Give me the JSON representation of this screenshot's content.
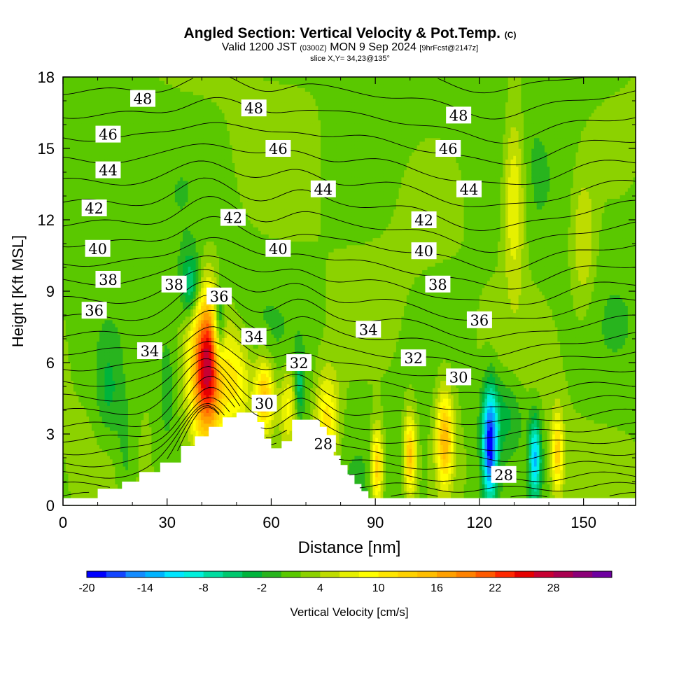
{
  "title": {
    "main": "Angled Section: Vertical Velocity & Pot.Temp.",
    "copyright": "(C)",
    "valid_prefix": "Valid 1200 JST",
    "utc": "(0300Z)",
    "valid_date": "MON 9 Sep 2024",
    "forecast": "[9hrFcst@2147z]",
    "slice": "slice X,Y= 34,23@135°"
  },
  "chart_data": {
    "type": "heatmap",
    "xlabel": "Distance [nm]",
    "ylabel": "Height [Kft MSL]",
    "xlim": [
      0,
      165
    ],
    "ylim": [
      0,
      18
    ],
    "xticks": [
      0,
      30,
      60,
      90,
      120,
      150
    ],
    "yticks": [
      0,
      3,
      6,
      9,
      12,
      15,
      18
    ],
    "colorbar": {
      "label": "Vertical Velocity [cm/s]",
      "min": -20,
      "max": 32,
      "step": 2,
      "tick_labels": [
        -20,
        -14,
        -8,
        -2,
        4,
        10,
        16,
        22,
        28
      ],
      "colors": [
        "#0000ff",
        "#1446ff",
        "#148cff",
        "#00b4ff",
        "#00e6ff",
        "#00f0dc",
        "#00dca0",
        "#00c86e",
        "#00b43c",
        "#28b41e",
        "#5ac800",
        "#8cd200",
        "#bedc00",
        "#e6f000",
        "#ffff00",
        "#ffe600",
        "#ffd200",
        "#ffbe00",
        "#ffa000",
        "#ff8200",
        "#ff5a00",
        "#ff2800",
        "#e60000",
        "#c80032",
        "#aa0050",
        "#8c0078",
        "#6e00a0"
      ]
    },
    "terrain": [
      [
        0,
        0.3
      ],
      [
        8,
        0.3
      ],
      [
        10,
        0.7
      ],
      [
        15,
        0.7
      ],
      [
        17,
        1.0
      ],
      [
        20,
        1.0
      ],
      [
        22,
        1.4
      ],
      [
        26,
        1.4
      ],
      [
        28,
        1.8
      ],
      [
        32,
        1.8
      ],
      [
        34,
        2.5
      ],
      [
        36,
        2.5
      ],
      [
        38,
        2.9
      ],
      [
        40,
        2.9
      ],
      [
        42,
        3.3
      ],
      [
        44,
        3.3
      ],
      [
        46,
        3.7
      ],
      [
        48,
        3.7
      ],
      [
        50,
        3.9
      ],
      [
        55,
        3.9
      ],
      [
        56,
        3.5
      ],
      [
        58,
        2.8
      ],
      [
        60,
        2.4
      ],
      [
        62,
        2.4
      ],
      [
        63,
        2.7
      ],
      [
        65,
        2.7
      ],
      [
        66,
        3.6
      ],
      [
        72,
        3.6
      ],
      [
        74,
        3.3
      ],
      [
        76,
        2.5
      ],
      [
        78,
        2.1
      ],
      [
        80,
        1.7
      ],
      [
        82,
        1.3
      ],
      [
        84,
        0.9
      ],
      [
        86,
        0.6
      ],
      [
        88,
        0.3
      ],
      [
        165,
        0.3
      ]
    ],
    "theta_isentropes": [
      {
        "value": 28,
        "labels": [
          [
            75,
            2.6
          ],
          [
            127,
            1.3
          ]
        ]
      },
      {
        "value": 30,
        "labels": [
          [
            58,
            4.3
          ],
          [
            114,
            5.4
          ]
        ]
      },
      {
        "value": 32,
        "labels": [
          [
            68,
            6.0
          ],
          [
            101,
            6.2
          ]
        ]
      },
      {
        "value": 34,
        "labels": [
          [
            25,
            6.5
          ],
          [
            55,
            7.1
          ],
          [
            88,
            7.4
          ]
        ]
      },
      {
        "value": 36,
        "labels": [
          [
            9,
            8.2
          ],
          [
            45,
            8.8
          ],
          [
            120,
            7.8
          ]
        ]
      },
      {
        "value": 38,
        "labels": [
          [
            13,
            9.5
          ],
          [
            32,
            9.3
          ],
          [
            108,
            9.3
          ]
        ]
      },
      {
        "value": 40,
        "labels": [
          [
            10,
            10.8
          ],
          [
            62,
            10.8
          ],
          [
            104,
            10.7
          ]
        ]
      },
      {
        "value": 42,
        "labels": [
          [
            9,
            12.5
          ],
          [
            49,
            12.1
          ],
          [
            104,
            12.0
          ]
        ]
      },
      {
        "value": 44,
        "labels": [
          [
            13,
            14.1
          ],
          [
            75,
            13.3
          ],
          [
            117,
            13.3
          ]
        ]
      },
      {
        "value": 46,
        "labels": [
          [
            13,
            15.6
          ],
          [
            62,
            15.0
          ],
          [
            111,
            15.0
          ]
        ]
      },
      {
        "value": 48,
        "labels": [
          [
            23,
            17.1
          ],
          [
            55,
            16.7
          ],
          [
            114,
            16.4
          ]
        ]
      }
    ],
    "vertical_velocity_cells": [
      {
        "x": 41.5,
        "y": 5.8,
        "peak": 26,
        "wx": 3.2,
        "wy": 2.2
      },
      {
        "x": 50,
        "y": 5.2,
        "peak": 9,
        "wx": 3,
        "wy": 1.5
      },
      {
        "x": 58,
        "y": 4.6,
        "peak": 14,
        "wx": 2,
        "wy": 1.1
      },
      {
        "x": 65,
        "y": 4.2,
        "peak": 8,
        "wx": 2,
        "wy": 1.2
      },
      {
        "x": 76,
        "y": 3.5,
        "peak": 10,
        "wx": 2.5,
        "wy": 1.5
      },
      {
        "x": 90.5,
        "y": 1.6,
        "peak": 13,
        "wx": 1.2,
        "wy": 1.2
      },
      {
        "x": 100,
        "y": 2.1,
        "peak": 13,
        "wx": 1.2,
        "wy": 1.2
      },
      {
        "x": 110,
        "y": 2.8,
        "peak": 14,
        "wx": 1.7,
        "wy": 1.4
      },
      {
        "x": 142.5,
        "y": 2.2,
        "peak": 11,
        "wx": 1.2,
        "wy": 1.2
      },
      {
        "x": 130,
        "y": 13.0,
        "peak": 8,
        "wx": 2.2,
        "wy": 2.5
      },
      {
        "x": 150,
        "y": 11.0,
        "peak": 5,
        "wx": 2.5,
        "wy": 2
      },
      {
        "x": 37,
        "y": 9.2,
        "peak": -9,
        "wx": 2,
        "wy": 1
      },
      {
        "x": 45,
        "y": 7.5,
        "peak": -11,
        "wx": 1.2,
        "wy": 1.2
      },
      {
        "x": 68,
        "y": 5.0,
        "peak": -7,
        "wx": 1,
        "wy": 1
      },
      {
        "x": 123,
        "y": 2.5,
        "peak": -20,
        "wx": 1.5,
        "wy": 1.6
      },
      {
        "x": 136,
        "y": 2.0,
        "peak": -14,
        "wx": 1.2,
        "wy": 1.2
      },
      {
        "x": 127,
        "y": 3.8,
        "peak": -5,
        "wx": 4,
        "wy": 1.2
      },
      {
        "x": 13,
        "y": 4.8,
        "peak": -4,
        "wx": 2.5,
        "wy": 1.5
      },
      {
        "x": 18,
        "y": 2.0,
        "peak": -3,
        "wx": 2,
        "wy": 2
      },
      {
        "x": 30,
        "y": 5.0,
        "peak": -3,
        "wx": 2,
        "wy": 2
      }
    ]
  }
}
